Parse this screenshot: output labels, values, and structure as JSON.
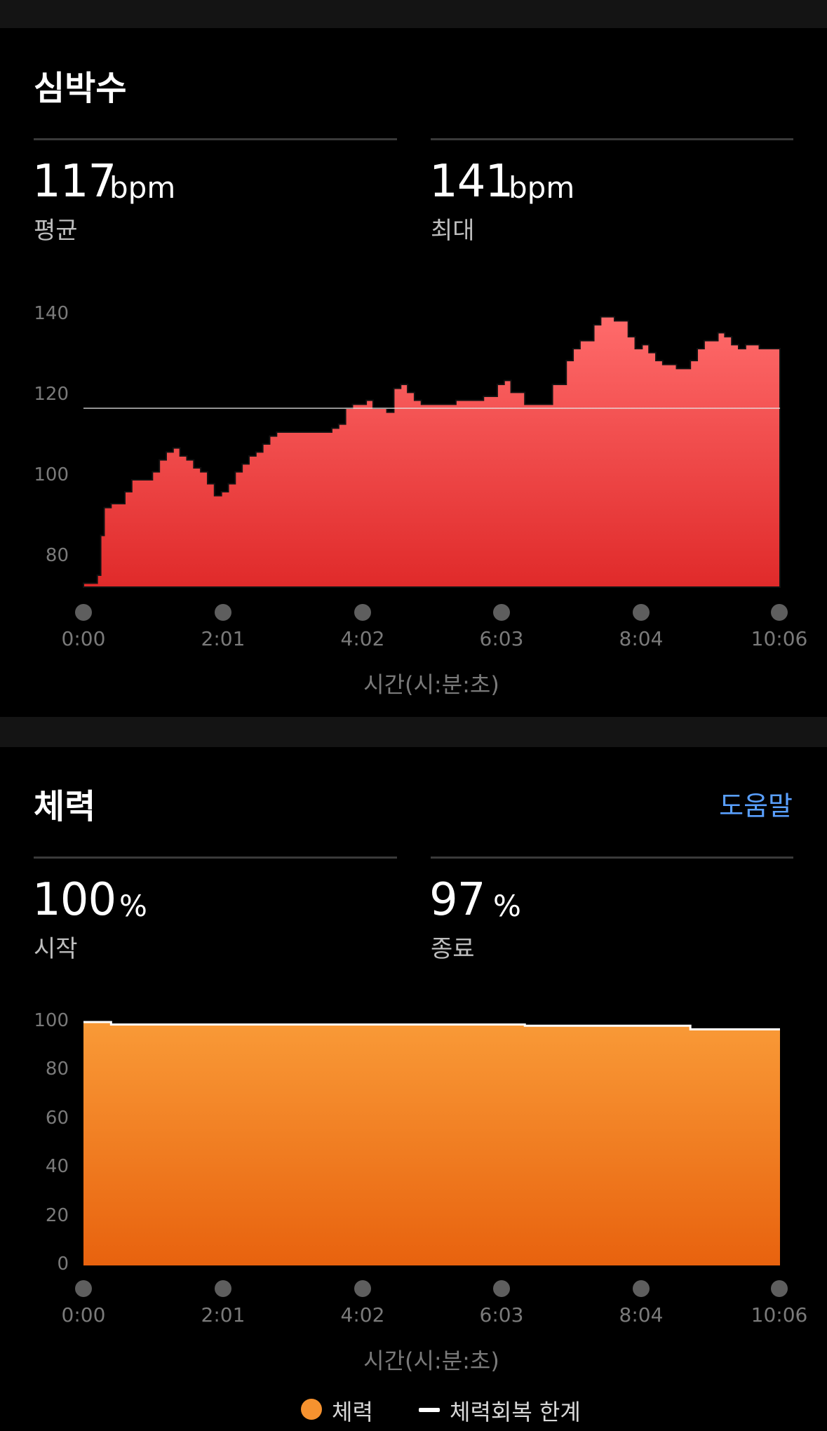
{
  "heart_rate": {
    "title": "심박수",
    "avg_value": "117",
    "avg_unit": "bpm",
    "avg_label": "평균",
    "max_value": "141",
    "max_unit": "bpm",
    "max_label": "최대",
    "y_ticks": [
      "140",
      "120",
      "100",
      "80"
    ],
    "x_ticks": [
      "0:00",
      "2:01",
      "4:02",
      "6:03",
      "8:04",
      "10:06"
    ],
    "x_axis_title": "시간(시:분:초)",
    "fill_top_color": "#ff6b6b",
    "fill_bottom_color": "#e02a2a"
  },
  "stamina": {
    "title": "체력",
    "help_label": "도움말",
    "start_value": "100",
    "start_unit": "%",
    "start_label": "시작",
    "end_value": "97",
    "end_unit": "%",
    "end_label": "종료",
    "y_ticks": [
      "100",
      "80",
      "60",
      "40",
      "20",
      "0"
    ],
    "x_ticks": [
      "0:00",
      "2:01",
      "4:02",
      "6:03",
      "8:04",
      "10:06"
    ],
    "x_axis_title": "시간(시:분:초)",
    "fill_top_color": "#f99a37",
    "fill_bottom_color": "#e8620e",
    "legend_stamina": "체력",
    "legend_limit": "체력회복 한계"
  },
  "chart_data": [
    {
      "type": "area",
      "xlabel": "시간(시:분:초)",
      "ylabel": "",
      "ylim": [
        72,
        141
      ],
      "xlim_min": [
        0,
        10.1
      ],
      "grid": false,
      "reference_line": 117,
      "series": [
        {
          "x": [
            0,
            0.1,
            0.2,
            0.25,
            0.3,
            0.4,
            0.5,
            0.6,
            0.7,
            0.8,
            0.9,
            1.0,
            1.1,
            1.2,
            1.3,
            1.4,
            1.5,
            1.6,
            1.7,
            1.8,
            1.9,
            2.0,
            2.1,
            2.2,
            2.3,
            2.4,
            2.5,
            2.6,
            2.7,
            2.8,
            2.9,
            3.0,
            3.1,
            3.2,
            3.3,
            3.4,
            3.5,
            3.6,
            3.7,
            3.8,
            3.9,
            4.0,
            4.1,
            4.2,
            4.4,
            4.5,
            4.6,
            4.7,
            4.8,
            4.9,
            5.0,
            5.2,
            5.4,
            5.6,
            5.8,
            6.0,
            6.1,
            6.2,
            6.4,
            6.6,
            6.8,
            7.0,
            7.1,
            7.2,
            7.3,
            7.4,
            7.5,
            7.6,
            7.7,
            7.8,
            7.9,
            8.0,
            8.1,
            8.2,
            8.3,
            8.4,
            8.5,
            8.6,
            8.7,
            8.8,
            8.9,
            9.0,
            9.1,
            9.2,
            9.3,
            9.4,
            9.5,
            9.6,
            9.7,
            9.8,
            9.9,
            10.0,
            10.1
          ],
          "y": [
            73,
            73,
            75,
            85,
            92,
            93,
            93,
            96,
            99,
            99,
            99,
            101,
            104,
            106,
            107,
            105,
            104,
            102,
            101,
            98,
            95,
            96,
            98,
            101,
            103,
            105,
            106,
            108,
            110,
            111,
            111,
            111,
            111,
            111,
            111,
            111,
            111,
            112,
            113,
            117,
            118,
            118,
            119,
            117,
            116,
            122,
            123,
            121,
            119,
            118,
            118,
            118,
            119,
            119,
            120,
            123,
            124,
            121,
            118,
            118,
            123,
            129,
            132,
            134,
            134,
            138,
            140,
            140,
            139,
            139,
            135,
            132,
            133,
            131,
            129,
            128,
            128,
            127,
            127,
            129,
            132,
            134,
            134,
            136,
            135,
            133,
            132,
            133,
            133,
            132,
            132,
            132,
            131
          ]
        }
      ]
    },
    {
      "type": "area",
      "xlabel": "시간(시:분:초)",
      "ylabel": "",
      "ylim": [
        0,
        100
      ],
      "grid": false,
      "legend": "bottom",
      "series": [
        {
          "name": "체력",
          "x": [
            0,
            0.4,
            0.4,
            6.4,
            6.4,
            8.8,
            8.8,
            10.1
          ],
          "y": [
            100,
            100,
            99,
            99,
            98.5,
            98.5,
            97,
            97
          ]
        },
        {
          "name": "체력회복 한계",
          "x": [
            0,
            0.4,
            0.4,
            6.4,
            6.4,
            8.8,
            8.8,
            10.1
          ],
          "y": [
            100,
            100,
            99,
            99,
            98.5,
            98.5,
            97,
            97
          ]
        }
      ]
    }
  ]
}
